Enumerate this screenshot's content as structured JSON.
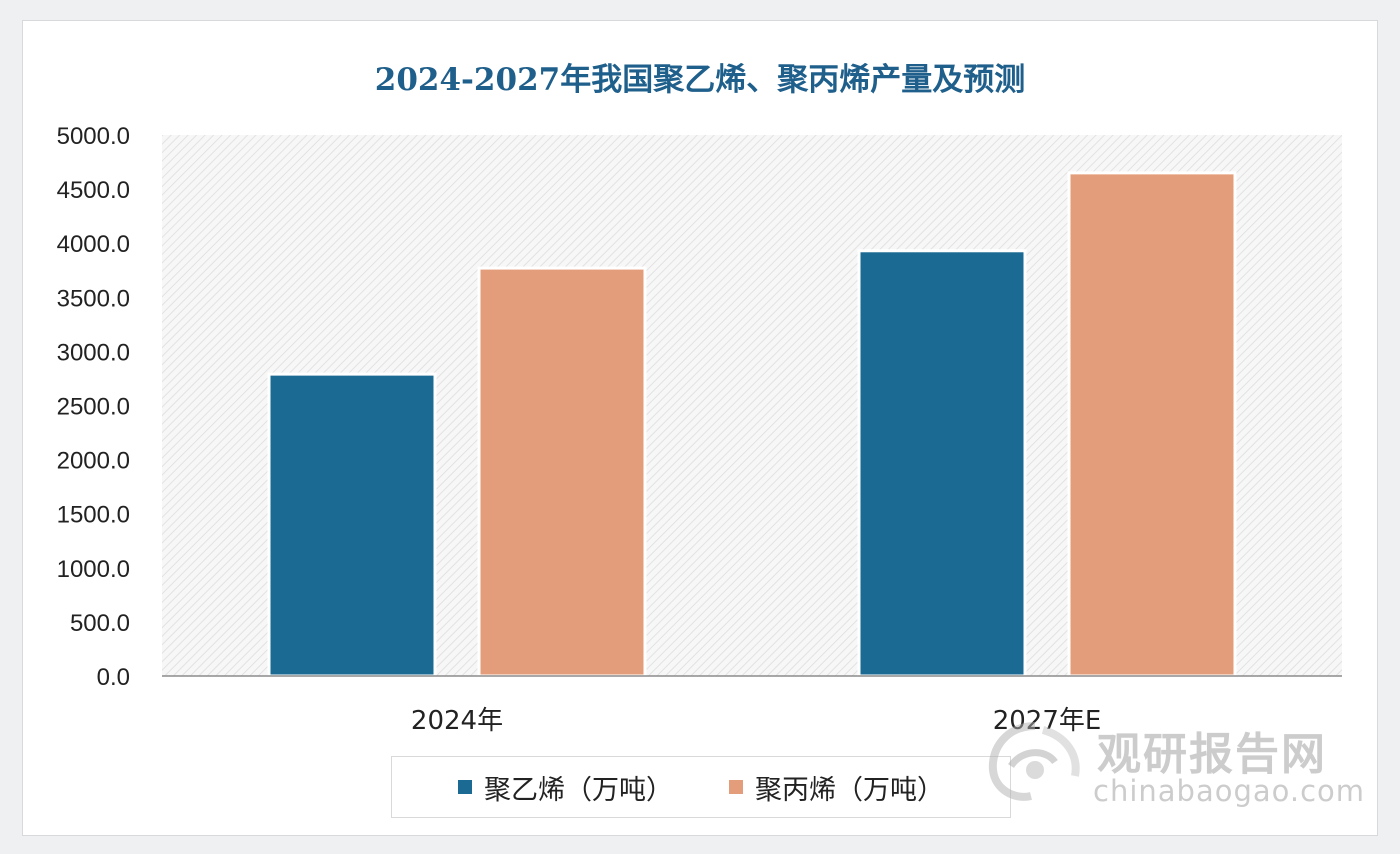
{
  "chart_data": {
    "type": "bar",
    "title": "2024-2027年我国聚乙烯、聚丙烯产量及预测",
    "categories": [
      "2024年",
      "2027年E"
    ],
    "series": [
      {
        "name": "聚乙烯（万吨）",
        "values": [
          2790.0,
          3930.0
        ],
        "color": "#1b6a93"
      },
      {
        "name": "聚丙烯（万吨）",
        "values": [
          3770.0,
          4650.0
        ],
        "color": "#e49d7a"
      }
    ],
    "ylim": [
      0,
      5000
    ],
    "yticks": [
      "0.0",
      "500.0",
      "1000.0",
      "1500.0",
      "2000.0",
      "2500.0",
      "3000.0",
      "3500.0",
      "4000.0",
      "4500.0",
      "5000.0"
    ],
    "xlabel": "",
    "ylabel": "",
    "grid": false,
    "legend_position": "bottom"
  },
  "watermark": {
    "cn": "观研报告网",
    "en": "chinabaogao.com"
  }
}
